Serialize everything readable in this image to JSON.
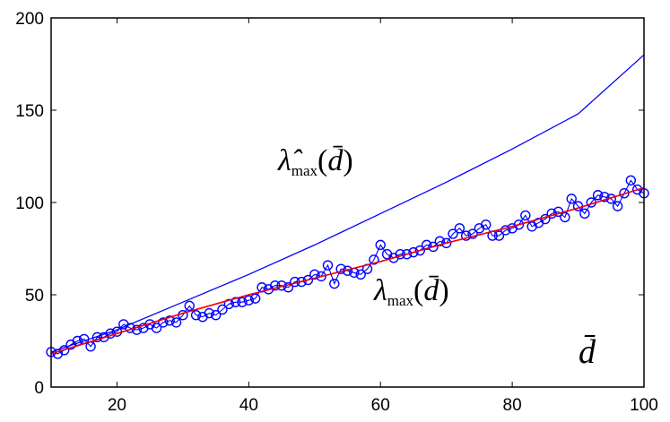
{
  "chart_data": {
    "type": "line",
    "title": "",
    "xlabel": "d̄",
    "ylabel": "",
    "xlim": [
      10,
      100
    ],
    "ylim": [
      0,
      200
    ],
    "xticks": [
      20,
      40,
      60,
      80,
      100
    ],
    "yticks": [
      0,
      50,
      100,
      150,
      200
    ],
    "grid": false,
    "annotations": [
      {
        "text": "λ̂max(d̄)",
        "x": 38,
        "y": 125
      },
      {
        "text": "λmax(d̄)",
        "x": 58,
        "y": 53
      },
      {
        "text": "d̄",
        "x": 92,
        "y": 18
      }
    ],
    "series": [
      {
        "color": "#0000ff",
        "style": "line",
        "x": [
          10,
          20,
          30,
          40,
          50,
          60,
          70,
          80,
          90,
          100
        ],
        "y": [
          19,
          31,
          46,
          61,
          77,
          94,
          111,
          129,
          148,
          180
        ]
      },
      {
        "color": "#ff0000",
        "style": "line",
        "x": [
          10,
          20,
          30,
          40,
          50,
          60,
          70,
          80,
          90,
          100
        ],
        "y": [
          18,
          29,
          40,
          50,
          59,
          68,
          78,
          87,
          97,
          108
        ]
      },
      {
        "color": "#0000ff",
        "style": "markers",
        "x": [
          10,
          11,
          12,
          13,
          14,
          15,
          16,
          17,
          18,
          19,
          20,
          21,
          22,
          23,
          24,
          25,
          26,
          27,
          28,
          29,
          30,
          31,
          32,
          33,
          34,
          35,
          36,
          37,
          38,
          39,
          40,
          41,
          42,
          43,
          44,
          45,
          46,
          47,
          48,
          49,
          50,
          51,
          52,
          53,
          54,
          55,
          56,
          57,
          58,
          59,
          60,
          61,
          62,
          63,
          64,
          65,
          66,
          67,
          68,
          69,
          70,
          71,
          72,
          73,
          74,
          75,
          76,
          77,
          78,
          79,
          80,
          81,
          82,
          83,
          84,
          85,
          86,
          87,
          88,
          89,
          90,
          91,
          92,
          93,
          94,
          95,
          96,
          97,
          98,
          99,
          100
        ],
        "y": [
          19,
          18,
          20,
          23,
          25,
          26,
          22,
          27,
          27,
          29,
          30,
          34,
          32,
          31,
          32,
          34,
          32,
          35,
          36,
          35,
          39,
          44,
          39,
          38,
          40,
          39,
          42,
          45,
          46,
          46,
          47,
          48,
          54,
          53,
          55,
          55,
          54,
          57,
          57,
          58,
          61,
          60,
          66,
          56,
          64,
          63,
          62,
          61,
          64,
          69,
          77,
          72,
          70,
          72,
          72,
          73,
          74,
          77,
          76,
          79,
          78,
          83,
          86,
          82,
          83,
          86,
          88,
          82,
          82,
          85,
          86,
          88,
          93,
          87,
          89,
          91,
          94,
          95,
          92,
          102,
          98,
          94,
          100,
          104,
          103,
          102,
          98,
          105,
          112,
          107,
          105
        ]
      }
    ]
  }
}
